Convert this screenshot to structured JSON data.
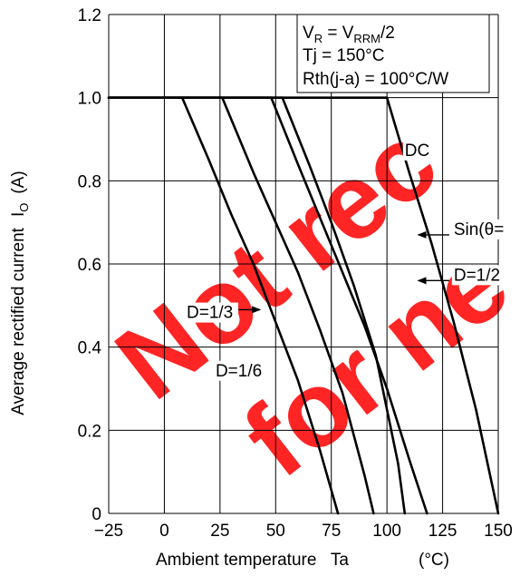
{
  "chart_data": {
    "type": "line",
    "xlabel": "Ambient temperature   Ta",
    "xunit": "(°C)",
    "ylabel": "Average rectified current",
    "ylabel_symbol": "I",
    "ylabel_subscript": "O",
    "ylabel_unit": "(A)",
    "xlim": [
      -25,
      150
    ],
    "ylim": [
      0,
      1.2
    ],
    "x_ticks": [
      "−25",
      "0",
      "25",
      "50",
      "75",
      "100",
      "125",
      "150"
    ],
    "y_ticks": [
      "0",
      "0.2",
      "0.4",
      "0.6",
      "0.8",
      "1.0",
      "1.2"
    ],
    "x_tick_values": [
      -25,
      0,
      25,
      50,
      75,
      100,
      125,
      150
    ],
    "y_tick_values": [
      0,
      0.2,
      0.4,
      0.6,
      0.8,
      1.0,
      1.2
    ],
    "grid": true,
    "conditions": {
      "line1_a": "V",
      "line1_a_sub": "R",
      "line1_b": " = V",
      "line1_b_sub": "RRM",
      "line1_c": "/2",
      "line2": "Tj = 150°C",
      "line3": "Rth(j-a) = 100°C/W"
    },
    "series": [
      {
        "name": "DC",
        "x": [
          -25,
          100,
          110,
          120,
          130,
          140,
          150
        ],
        "y": [
          1.0,
          1.0,
          0.82,
          0.65,
          0.46,
          0.25,
          0.0
        ]
      },
      {
        "name": "Sin(θ=",
        "x": [
          -25,
          53,
          65,
          75,
          85,
          95,
          105,
          108
        ],
        "y": [
          1.0,
          1.0,
          0.84,
          0.7,
          0.55,
          0.38,
          0.12,
          0.0
        ]
      },
      {
        "name": "D=1/2",
        "x": [
          -25,
          48,
          60,
          70,
          80,
          90,
          100,
          110,
          118
        ],
        "y": [
          1.0,
          1.0,
          0.84,
          0.71,
          0.58,
          0.45,
          0.3,
          0.13,
          0.0
        ]
      },
      {
        "name": "D=1/3",
        "x": [
          -25,
          26,
          40,
          50,
          60,
          70,
          80,
          90,
          94
        ],
        "y": [
          1.0,
          1.0,
          0.82,
          0.7,
          0.58,
          0.44,
          0.29,
          0.09,
          0.0
        ]
      },
      {
        "name": "D=1/6",
        "x": [
          8,
          20,
          30,
          40,
          50,
          60,
          70,
          78
        ],
        "y": [
          1.0,
          0.85,
          0.72,
          0.6,
          0.46,
          0.32,
          0.15,
          0.0
        ]
      }
    ],
    "annotations": [
      {
        "text": "DC",
        "x": 108,
        "y": 0.86
      },
      {
        "text": "Sin(θ=",
        "x": 130,
        "y": 0.67
      },
      {
        "text": "D=1/2",
        "x": 130,
        "y": 0.56
      },
      {
        "text": "D=1/3",
        "x": 10,
        "y": 0.47
      },
      {
        "text": "D=1/6",
        "x": 23,
        "y": 0.33
      }
    ],
    "arrows": [
      {
        "series": "Sin(θ=",
        "from": [
          128,
          0.67
        ],
        "to": [
          114,
          0.67
        ]
      },
      {
        "series": "D=1/2",
        "from": [
          128,
          0.56
        ],
        "to": [
          114,
          0.56
        ]
      },
      {
        "series": "D=1/3",
        "from": [
          27,
          0.49
        ],
        "to": [
          43,
          0.49
        ]
      }
    ]
  },
  "watermark": "Not recommended for new design"
}
